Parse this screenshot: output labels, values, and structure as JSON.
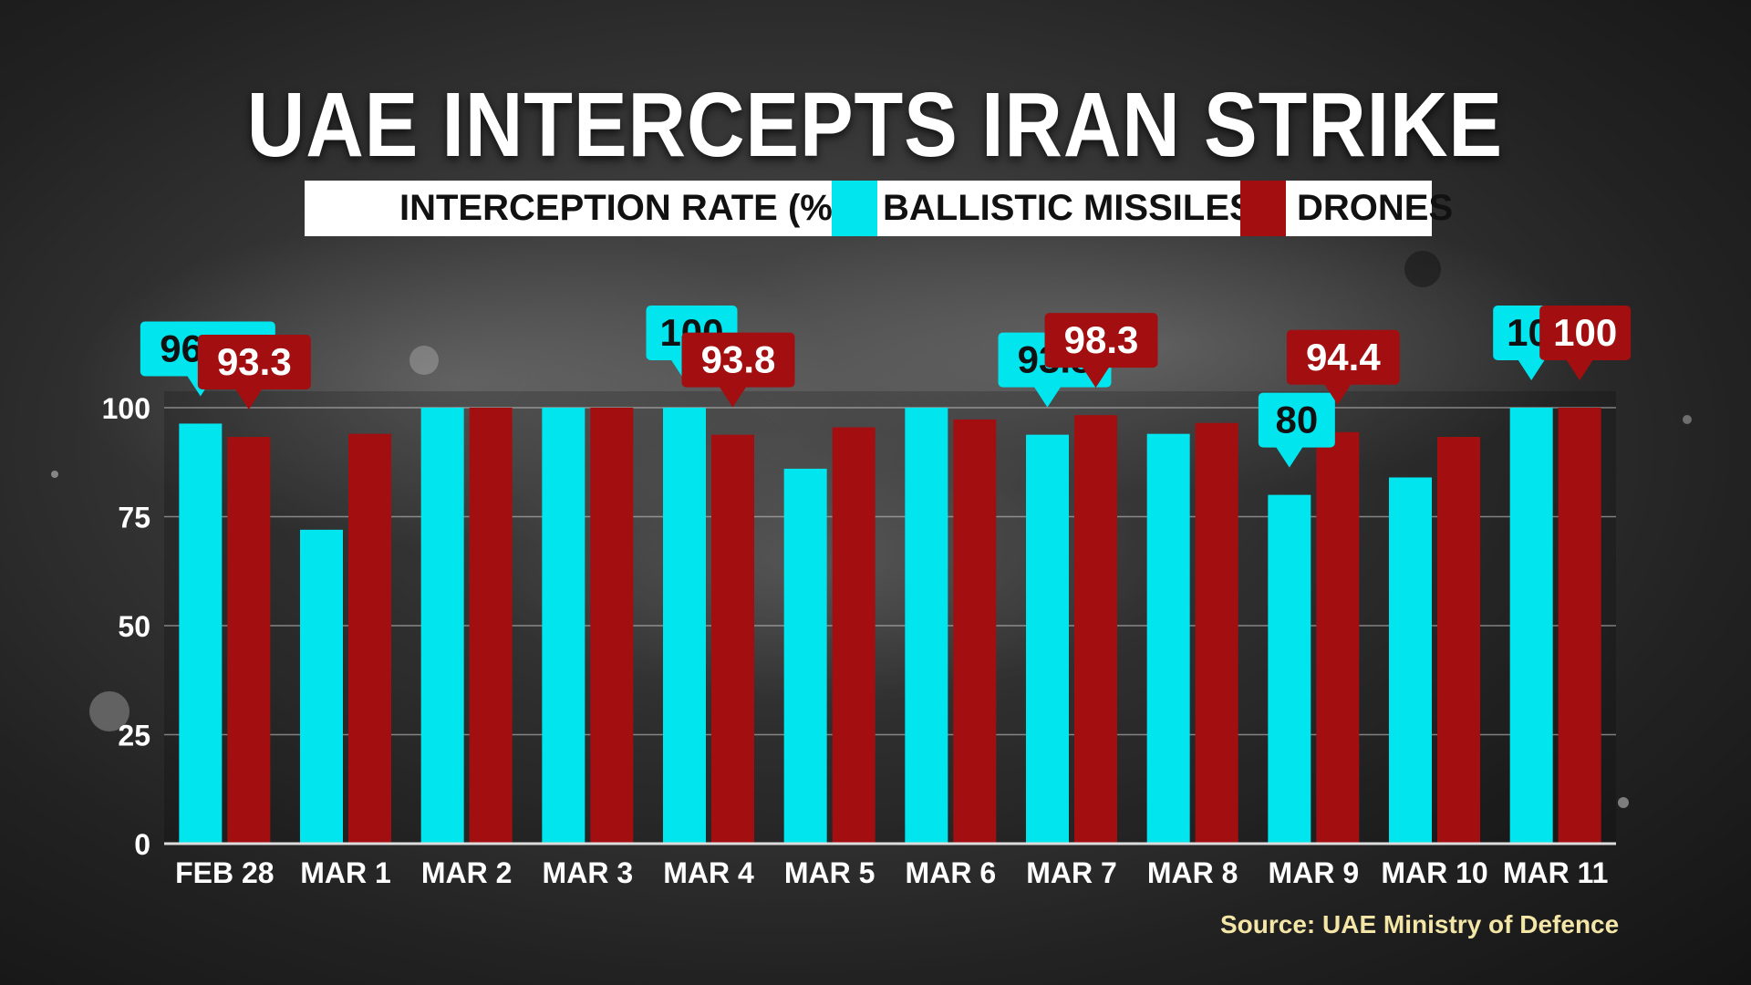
{
  "title": "UAE INTERCEPTS IRAN STRIKE",
  "legend": {
    "rate_label": "INTERCEPTION RATE (%)",
    "series_1": "BALLISTIC MISSILES",
    "series_2": "DRONES"
  },
  "source": "Source: UAE Ministry of Defence",
  "colors": {
    "ballistic": "#00e5ee",
    "drones": "#a30f10",
    "callout_text_ballistic": "#111111",
    "callout_text_drones": "#ffffff"
  },
  "chart_data": {
    "type": "bar",
    "title": "UAE INTERCEPTS IRAN STRIKE",
    "ylabel": "INTERCEPTION RATE (%)",
    "xlabel": "",
    "ylim": [
      0,
      100
    ],
    "yticks": [
      0,
      25,
      50,
      75,
      100
    ],
    "grid": true,
    "legend_position": "top",
    "categories": [
      "FEB 28",
      "MAR 1",
      "MAR 2",
      "MAR 3",
      "MAR 4",
      "MAR 5",
      "MAR 6",
      "MAR 7",
      "MAR 8",
      "MAR 9",
      "MAR 10",
      "MAR 11"
    ],
    "series": [
      {
        "name": "BALLISTIC MISSILES",
        "values": [
          96.35,
          72,
          100,
          100,
          100,
          86,
          100,
          93.8,
          94,
          80,
          84,
          100
        ]
      },
      {
        "name": "DRONES",
        "values": [
          93.3,
          94,
          100,
          100,
          93.8,
          95.5,
          97.3,
          98.3,
          96.5,
          94.4,
          93.3,
          100
        ]
      }
    ],
    "callouts": [
      {
        "series": 0,
        "index": 0,
        "label": "96.35"
      },
      {
        "series": 1,
        "index": 0,
        "label": "93.3"
      },
      {
        "series": 0,
        "index": 4,
        "label": "100"
      },
      {
        "series": 1,
        "index": 4,
        "label": "93.8"
      },
      {
        "series": 0,
        "index": 7,
        "label": "93.8"
      },
      {
        "series": 1,
        "index": 7,
        "label": "98.3"
      },
      {
        "series": 0,
        "index": 9,
        "label": "80"
      },
      {
        "series": 1,
        "index": 9,
        "label": "94.4"
      },
      {
        "series": 0,
        "index": 11,
        "label": "100"
      },
      {
        "series": 1,
        "index": 11,
        "label": "100"
      }
    ]
  }
}
